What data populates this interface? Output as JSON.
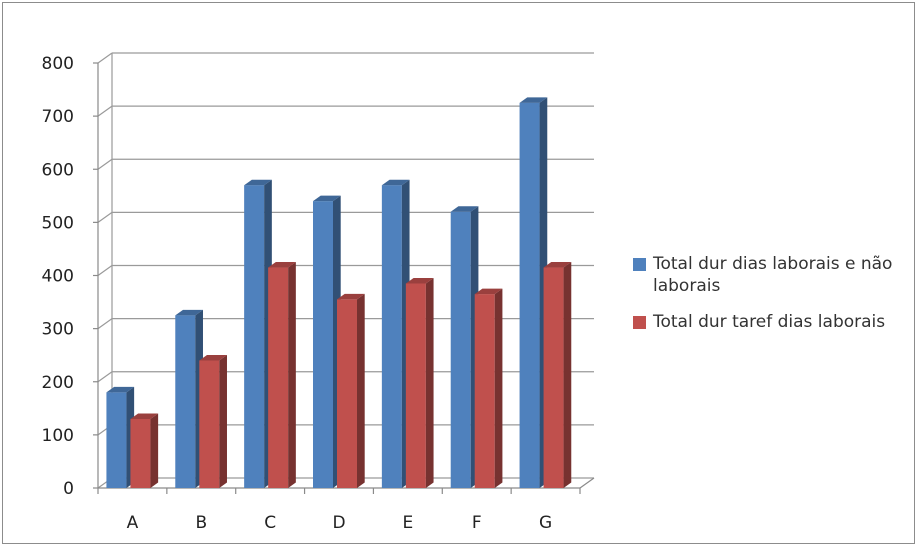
{
  "chart_data": {
    "type": "bar",
    "title": "",
    "xlabel": "",
    "ylabel": "",
    "categories": [
      "A",
      "B",
      "C",
      "D",
      "E",
      "F",
      "G"
    ],
    "series": [
      {
        "name": "Total dur dias laborais e não laborais",
        "color": "#4f81bd",
        "values": [
          180,
          325,
          570,
          540,
          570,
          520,
          725
        ]
      },
      {
        "name": "Total dur taref dias laborais",
        "color": "#c0504d",
        "values": [
          130,
          240,
          415,
          355,
          385,
          365,
          415
        ]
      }
    ],
    "ylim": [
      0,
      800
    ],
    "yticks": [
      "0",
      "100",
      "200",
      "300",
      "400",
      "500",
      "600",
      "700",
      "800"
    ],
    "grid": true,
    "legend_position": "right",
    "style": "3d-clustered-column"
  }
}
